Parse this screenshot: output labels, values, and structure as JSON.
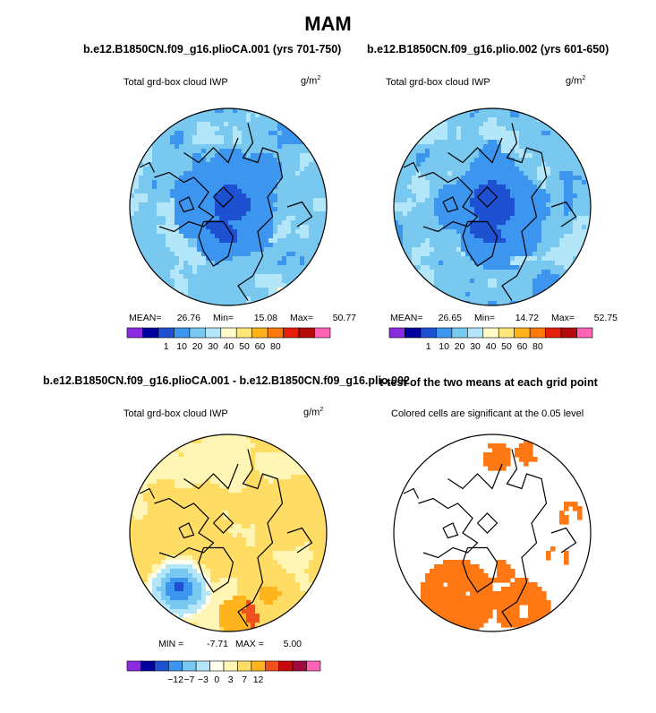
{
  "title": "MAM",
  "panels": [
    {
      "title": "b.e12.B1850CN.f09_g16.plioCA.001 (yrs 701-750)",
      "subtitle": "Total grd-box cloud IWP",
      "units": "g/m",
      "units_sup": "2",
      "stats": {
        "mean_label": "MEAN=",
        "mean": "26.76",
        "min_label": "Min=",
        "min": "15.08",
        "max_label": "Max=",
        "max": "50.77"
      }
    },
    {
      "title": "b.e12.B1850CN.f09_g16.plio.002 (yrs 601-650)",
      "subtitle": "Total grd-box cloud IWP",
      "units": "g/m",
      "units_sup": "2",
      "stats": {
        "mean_label": "MEAN=",
        "mean": "26.65",
        "min_label": "Min=",
        "min": "14.72",
        "max_label": "Max=",
        "max": "52.75"
      }
    },
    {
      "title": "b.e12.B1850CN.f09_g16.plioCA.001 - b.e12.B1850CN.f09_g16.plio.002",
      "subtitle": "Total grd-box cloud IWP",
      "units": "g/m",
      "units_sup": "2",
      "stats": {
        "min_label": "MIN =",
        "min": "-7.71",
        "max_label": "MAX =",
        "max": "5.00"
      }
    },
    {
      "title": "t-test of the two means at each grid point",
      "subtitle": "Colored cells are significant at the 0.05 level"
    }
  ],
  "chart_data": [
    {
      "type": "heatmap",
      "projection": "north-polar-stereographic",
      "field": "Total grd-box cloud IWP",
      "colorbar": {
        "levels": [
          1,
          10,
          20,
          30,
          40,
          50,
          60,
          80
        ],
        "colors": [
          "#8a2be2",
          "#0000a0",
          "#1e50d2",
          "#3c96f0",
          "#78c8f0",
          "#b4e6fa",
          "#fffac8",
          "#ffe678",
          "#ffb41e",
          "#ff780a",
          "#e61e0a",
          "#b40a0a",
          "#ff64b4"
        ],
        "tick_labels": [
          "1",
          "10",
          "20",
          "30",
          "40",
          "50",
          "60",
          "80"
        ]
      }
    },
    {
      "type": "heatmap",
      "projection": "north-polar-stereographic",
      "field": "Total grd-box cloud IWP",
      "colorbar": {
        "levels": [
          1,
          10,
          20,
          30,
          40,
          50,
          60,
          80
        ],
        "colors": [
          "#8a2be2",
          "#0000a0",
          "#1e50d2",
          "#3c96f0",
          "#78c8f0",
          "#b4e6fa",
          "#fffac8",
          "#ffe678",
          "#ffb41e",
          "#ff780a",
          "#e61e0a",
          "#b40a0a",
          "#ff64b4"
        ],
        "tick_labels": [
          "1",
          "10",
          "20",
          "30",
          "40",
          "50",
          "60",
          "80"
        ]
      }
    },
    {
      "type": "heatmap",
      "projection": "north-polar-stereographic",
      "field": "difference",
      "colorbar": {
        "levels": [
          -12,
          -7,
          -3,
          0,
          3,
          7,
          12
        ],
        "colors": [
          "#8a2be2",
          "#0000a0",
          "#1e50d2",
          "#3c96f0",
          "#78c8f0",
          "#b4e6fa",
          "#fffff0",
          "#fff5b4",
          "#ffdc64",
          "#ffb41e",
          "#f0501e",
          "#c80a0a",
          "#a00a3c",
          "#ff64b4"
        ],
        "tick_labels": [
          "-12",
          "-7",
          "-3",
          "0",
          "3",
          "7",
          "12"
        ]
      }
    },
    {
      "type": "heatmap",
      "projection": "north-polar-stereographic",
      "field": "significance mask",
      "significant_color": "#ff7814"
    }
  ]
}
